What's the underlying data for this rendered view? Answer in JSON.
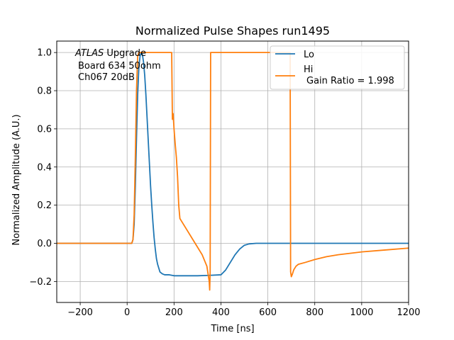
{
  "chart_data": {
    "type": "line",
    "title": "Normalized Pulse Shapes run1495",
    "xlabel": "Time [ns]",
    "ylabel": "Normalized Amplitude (A.U.)",
    "xlim": [
      -300,
      1200
    ],
    "ylim": [
      -0.31,
      1.06
    ],
    "xticks": [
      -200,
      0,
      200,
      400,
      600,
      800,
      1000,
      1200
    ],
    "yticks": [
      -0.2,
      0.0,
      0.2,
      0.4,
      0.6,
      0.8,
      1.0
    ],
    "grid": true,
    "legend": "top-right",
    "annotation": {
      "atlas": "ATLAS",
      "line1_rest": " Upgrade",
      "line2": "Board 634 50ohm",
      "line3": "Ch067 20dB"
    },
    "series": [
      {
        "name": "Lo",
        "color": "#1f77b4",
        "x": [
          -300,
          20,
          25,
          30,
          35,
          40,
          45,
          50,
          55,
          60,
          65,
          70,
          75,
          80,
          85,
          90,
          95,
          100,
          105,
          110,
          115,
          120,
          125,
          130,
          135,
          140,
          150,
          160,
          170,
          180,
          200,
          250,
          300,
          350,
          400,
          420,
          440,
          460,
          480,
          500,
          520,
          550,
          600,
          1200
        ],
        "y": [
          0.0,
          0.0,
          0.02,
          0.1,
          0.3,
          0.55,
          0.78,
          0.92,
          0.98,
          1.0,
          0.99,
          0.95,
          0.88,
          0.78,
          0.66,
          0.54,
          0.42,
          0.3,
          0.2,
          0.11,
          0.03,
          -0.03,
          -0.08,
          -0.11,
          -0.13,
          -0.15,
          -0.16,
          -0.165,
          -0.165,
          -0.165,
          -0.17,
          -0.17,
          -0.17,
          -0.168,
          -0.165,
          -0.14,
          -0.1,
          -0.06,
          -0.03,
          -0.01,
          -0.003,
          0.0,
          0.0,
          0.0
        ]
      },
      {
        "name": "Hi",
        "label_extra": "Gain Ratio = 1.998",
        "color": "#ff7f0e",
        "x": [
          -300,
          20,
          25,
          30,
          35,
          40,
          45,
          50,
          190,
          193,
          196,
          200,
          205,
          210,
          215,
          220,
          225,
          230,
          240,
          260,
          280,
          300,
          320,
          340,
          350,
          352,
          354,
          356,
          358,
          695,
          697,
          700,
          705,
          710,
          720,
          730,
          760,
          800,
          850,
          900,
          1000,
          1100,
          1200
        ],
        "y": [
          0.0,
          0.0,
          0.02,
          0.15,
          0.45,
          0.8,
          0.98,
          1.0,
          1.0,
          0.65,
          0.68,
          0.6,
          0.52,
          0.45,
          0.35,
          0.2,
          0.13,
          0.12,
          0.1,
          0.06,
          0.02,
          -0.02,
          -0.06,
          -0.12,
          -0.2,
          -0.245,
          -0.15,
          1.0,
          1.0,
          1.0,
          -0.15,
          -0.175,
          -0.16,
          -0.14,
          -0.12,
          -0.11,
          -0.1,
          -0.085,
          -0.07,
          -0.06,
          -0.045,
          -0.035,
          -0.025
        ]
      }
    ]
  }
}
